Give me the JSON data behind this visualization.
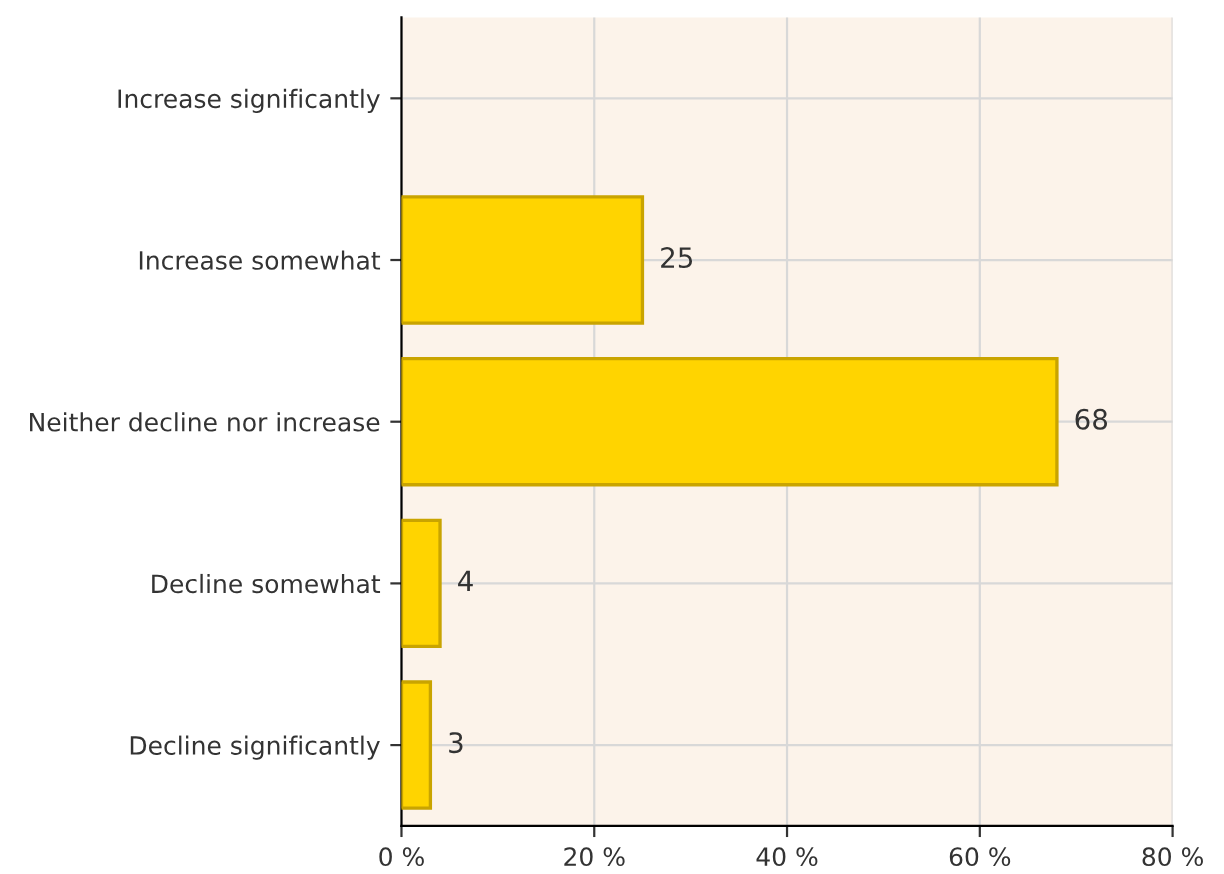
{
  "chart_data": {
    "type": "bar",
    "orientation": "horizontal",
    "categories": [
      "Increase significantly",
      "Increase somewhat",
      "Neither decline nor increase",
      "Decline somewhat",
      "Decline significantly"
    ],
    "values": [
      0,
      25,
      68,
      4,
      3
    ],
    "value_labels": [
      null,
      "25",
      "68",
      "4",
      "3"
    ],
    "color": "#ffd400",
    "xlim": [
      0,
      80
    ],
    "xticks": [
      {
        "value": 0,
        "label": "0 %"
      },
      {
        "value": 20,
        "label": "20 %"
      },
      {
        "value": 40,
        "label": "40 %"
      },
      {
        "value": 60,
        "label": "60 %"
      },
      {
        "value": 80,
        "label": "80 %"
      }
    ],
    "grid": true
  }
}
